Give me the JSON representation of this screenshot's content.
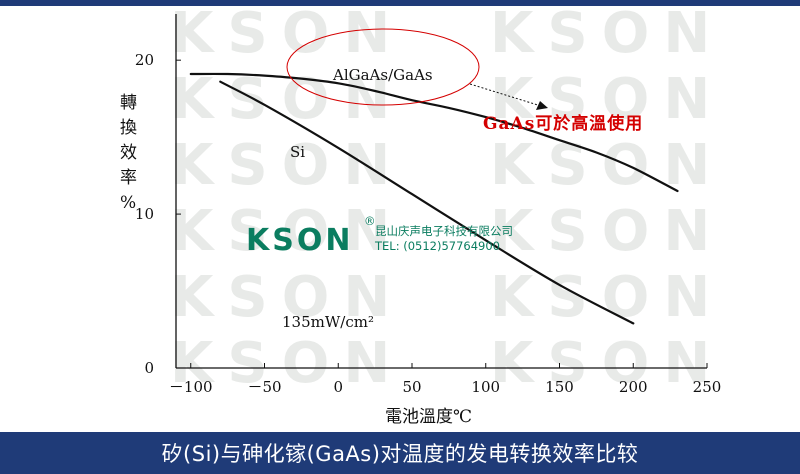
{
  "caption": "矽(Si)与砷化镓(GaAs)对温度的发电转换效率比较",
  "watermark": {
    "logo": "KSON",
    "registered": "®",
    "company": "昆山庆声电子科技有限公司",
    "tel": "TEL: (0512)57764900",
    "background_word": "KSON"
  },
  "colors": {
    "bar": "#1f3b78",
    "accent_red": "#d40000",
    "logo_green": "#0b7d60",
    "ink": "#111111"
  },
  "chart_data": {
    "type": "line",
    "xlabel": "電池溫度℃",
    "ylabel": "轉換效率%",
    "xlim": [
      -110,
      250
    ],
    "ylim": [
      0,
      23
    ],
    "xticks": [
      -100,
      -50,
      0,
      50,
      100,
      150,
      200,
      250
    ],
    "xtick_labels": [
      "－100",
      "－50",
      "0",
      "50",
      "100",
      "150",
      "200",
      "250"
    ],
    "yticks": [
      0,
      10,
      20
    ],
    "ytick_labels": [
      "0",
      "10",
      "20"
    ],
    "series": [
      {
        "name": "AlGaAs/GaAs",
        "x": [
          -100,
          -75,
          -50,
          -25,
          0,
          25,
          50,
          75,
          100,
          125,
          150,
          175,
          200,
          230
        ],
        "y": [
          19.1,
          19.1,
          19.0,
          18.8,
          18.5,
          18.0,
          17.4,
          16.9,
          16.3,
          15.6,
          14.8,
          14.0,
          13.0,
          11.5
        ]
      },
      {
        "name": "Si",
        "x": [
          -80,
          -50,
          0,
          50,
          100,
          150,
          200
        ],
        "y": [
          18.6,
          17.1,
          14.3,
          11.3,
          8.3,
          5.4,
          2.9
        ]
      }
    ],
    "annotations": [
      {
        "text": "AlGaAs/GaAs"
      },
      {
        "text": "GaAs可於高溫使用"
      },
      {
        "text": "Si"
      },
      {
        "text": "135mW/cm²"
      }
    ],
    "grid": false
  }
}
